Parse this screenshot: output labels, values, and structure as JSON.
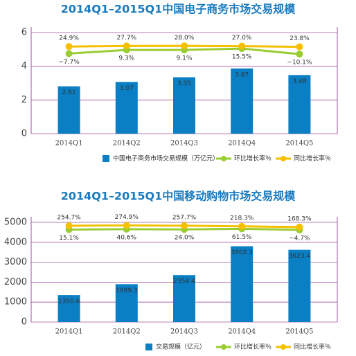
{
  "chart_data": [
    {
      "type": "bar",
      "title": "2014Q1–2015Q1中国电子商务市场交易规模",
      "categories": [
        "2014Q1",
        "2014Q2",
        "2014Q3",
        "2014Q4",
        "2014Q5"
      ],
      "series": [
        {
          "name": "中国电子商务市场交易规模（万亿元）",
          "type": "bar",
          "color": "#0a7fc4",
          "values": [
            2.81,
            3.07,
            3.35,
            3.87,
            3.48
          ]
        },
        {
          "name": "环比增长率％",
          "type": "line",
          "axis": "y2",
          "color": "#9acd32",
          "values": [
            -7.7,
            9.3,
            9.1,
            15.5,
            -10.1
          ],
          "value_labels": [
            "−7.7%",
            "9.3%",
            "9.1%",
            "15.5%",
            "−10.1%"
          ]
        },
        {
          "name": "同比增长率％",
          "type": "line",
          "axis": "y2",
          "color": "#f5c000",
          "values": [
            24.9,
            27.7,
            28.0,
            27.0,
            23.8
          ],
          "value_labels": [
            "24.9%",
            "27.7%",
            "28.0%",
            "27.0%",
            "23.8%"
          ]
        }
      ],
      "ylim": [
        0,
        6
      ],
      "yticks": [
        0,
        2,
        4,
        6
      ],
      "y2lim": [
        -380,
        90
      ],
      "grid": true,
      "legend": "bottom"
    },
    {
      "type": "bar",
      "title": "2014Q1–2015Q1中国移动购物市场交易规模",
      "categories": [
        "2014Q1",
        "2014Q2",
        "2014Q3",
        "2014Q4",
        "2014Q5"
      ],
      "series": [
        {
          "name": "交易规模（亿元）",
          "type": "bar",
          "color": "#0a7fc4",
          "values": [
            1350.6,
            1899.3,
            2354.4,
            3802.3,
            3623.4
          ]
        },
        {
          "name": "环比增长率％",
          "type": "line",
          "axis": "y2",
          "color": "#9acd32",
          "values": [
            15.1,
            40.6,
            24.0,
            61.5,
            -4.7
          ],
          "value_labels": [
            "15.1%",
            "40.6%",
            "24.0%",
            "61.5%",
            "−4.7%"
          ]
        },
        {
          "name": "同比增长率％",
          "type": "line",
          "axis": "y2",
          "color": "#f5c000",
          "values": [
            254.7,
            274.9,
            257.7,
            218.3,
            168.3
          ],
          "value_labels": [
            "254.7%",
            "274.9%",
            "257.7%",
            "218.3%",
            "168.3%"
          ]
        }
      ],
      "ylim": [
        0,
        5000
      ],
      "yticks": [
        0,
        1000,
        2000,
        3000,
        4000,
        5000
      ],
      "y2lim": [
        -5800,
        470
      ],
      "grid": true,
      "legend": "bottom"
    }
  ]
}
